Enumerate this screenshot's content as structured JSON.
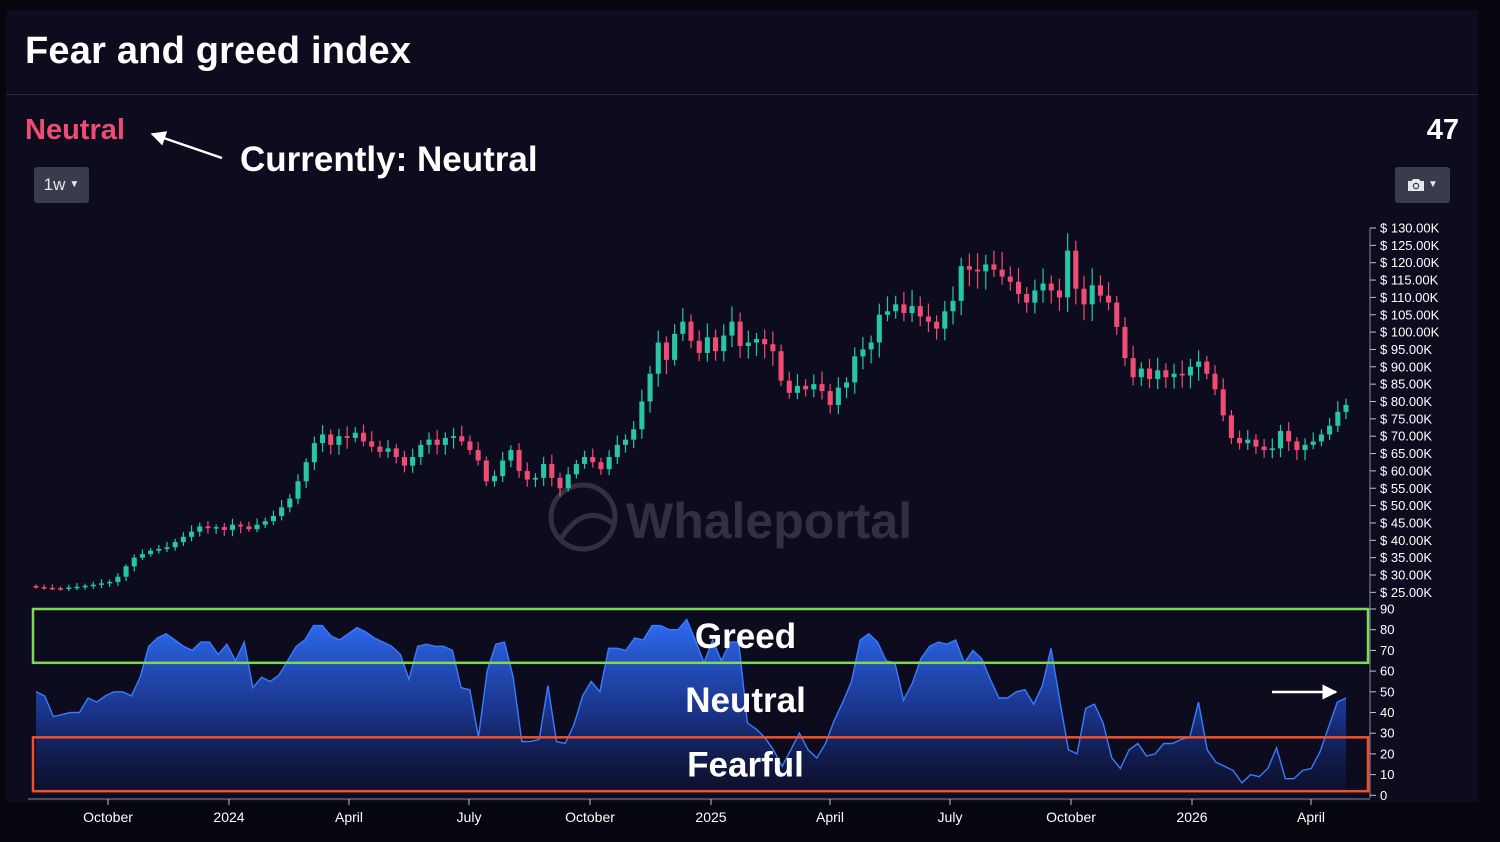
{
  "title": "Fear and greed index",
  "current": {
    "label": "Neutral",
    "value": "47",
    "label_color": "#ef4c73"
  },
  "annotation": "Currently: Neutral",
  "toolbar": {
    "timeframe_label": "1w",
    "timeframe_caret_icon": "chevron-down-icon",
    "screenshot_icon": "camera-icon"
  },
  "watermark": "Whaleportal",
  "colors": {
    "up": "#26c6a6",
    "down": "#ef4c73",
    "area": "#2f6df6",
    "greed_zone": "#7ed957",
    "fear_zone": "#f0502a"
  },
  "chart_data": [
    {
      "type": "candlestick",
      "title": "",
      "xlabel": "",
      "ylabel": "",
      "x_tick_labels": [
        "October",
        "2024",
        "April",
        "July",
        "October",
        "2025",
        "April",
        "July",
        "October",
        "2026",
        "April"
      ],
      "y_tick_labels": [
        "$ 130.00K",
        "$ 125.00K",
        "$ 120.00K",
        "$ 115.00K",
        "$ 110.00K",
        "$ 105.00K",
        "$ 100.00K",
        "$ 95.00K",
        "$ 90.00K",
        "$ 85.00K",
        "$ 80.00K",
        "$ 75.00K",
        "$ 70.00K",
        "$ 65.00K",
        "$ 60.00K",
        "$ 55.00K",
        "$ 50.00K",
        "$ 45.00K",
        "$ 40.00K",
        "$ 35.00K",
        "$ 30.00K",
        "$ 25.00K"
      ],
      "ylim": [
        25000,
        130000
      ],
      "closes_k": [
        26.5,
        26.3,
        26.2,
        26.1,
        26.4,
        26.6,
        26.9,
        27.2,
        27.6,
        28.0,
        29.5,
        32.5,
        35.0,
        36.0,
        37.0,
        37.5,
        38.0,
        39.5,
        41.0,
        42.5,
        44.0,
        43.5,
        43.8,
        43.0,
        44.5,
        44.0,
        43.2,
        44.5,
        45.5,
        47.0,
        49.5,
        52.0,
        57.0,
        62.5,
        68.0,
        70.5,
        67.5,
        70.0,
        69.5,
        71.0,
        68.5,
        67.0,
        65.5,
        66.5,
        64.0,
        61.5,
        64.0,
        67.5,
        69.0,
        67.5,
        69.5,
        70.0,
        68.5,
        66.0,
        63.0,
        57.0,
        58.5,
        63.0,
        66.0,
        60.0,
        57.5,
        58.0,
        62.0,
        58.0,
        55.0,
        59.0,
        62.0,
        64.0,
        62.5,
        60.5,
        64.0,
        67.5,
        69.0,
        72.0,
        80.0,
        88.0,
        97.0,
        92.0,
        99.5,
        103.0,
        97.5,
        94.0,
        98.5,
        94.5,
        99.0,
        103.0,
        96.0,
        97.0,
        98.0,
        96.5,
        94.5,
        86.0,
        82.5,
        84.5,
        83.5,
        85.0,
        83.0,
        79.0,
        84.0,
        85.5,
        93.0,
        95.0,
        97.0,
        105.0,
        106.0,
        108.0,
        105.5,
        107.5,
        104.5,
        103.0,
        101.0,
        106.0,
        109.0,
        119.0,
        118.0,
        117.5,
        119.5,
        118.0,
        116.0,
        114.5,
        111.0,
        108.5,
        112.0,
        114.0,
        112.0,
        110.0,
        123.5,
        112.5,
        108.0,
        113.5,
        110.5,
        108.5,
        101.5,
        92.5,
        87.0,
        89.5,
        86.5,
        89.0,
        87.0,
        88.0,
        87.5,
        90.0,
        91.5,
        88.0,
        83.5,
        76.0,
        69.5,
        68.0,
        69.0,
        67.0,
        66.0,
        66.5,
        71.5,
        68.5,
        66.0,
        67.5,
        68.5,
        70.5,
        73.0,
        77.0,
        79.0
      ]
    },
    {
      "type": "area",
      "title": "",
      "xlabel": "",
      "ylabel": "",
      "y_tick_labels": [
        "90",
        "80",
        "70",
        "60",
        "50",
        "40",
        "30",
        "20",
        "10",
        "0"
      ],
      "ylim": [
        0,
        90
      ],
      "values": [
        50,
        48,
        38,
        39,
        40,
        40,
        47,
        45,
        48,
        50,
        50,
        48,
        57,
        72,
        76,
        78,
        75,
        72,
        70,
        74,
        74,
        68,
        73,
        65,
        74,
        52,
        57,
        55,
        58,
        65,
        72,
        75,
        82,
        82,
        77,
        75,
        78,
        81,
        79,
        76,
        74,
        72,
        68,
        56,
        72,
        73,
        72,
        72,
        70,
        52,
        51,
        28,
        60,
        73,
        74,
        57,
        26,
        26,
        27,
        53,
        26,
        25,
        34,
        48,
        55,
        50,
        71,
        71,
        70,
        76,
        75,
        82,
        82,
        80,
        80,
        85,
        75,
        64,
        75,
        65,
        74,
        74,
        35,
        32,
        28,
        22,
        14,
        22,
        30,
        22,
        18,
        25,
        36,
        45,
        55,
        75,
        78,
        74,
        65,
        64,
        46,
        54,
        66,
        72,
        74,
        73,
        75,
        64,
        70,
        66,
        56,
        47,
        47,
        50,
        51,
        44,
        53,
        71,
        46,
        22,
        20,
        42,
        44,
        35,
        18,
        13,
        22,
        25,
        19,
        20,
        25,
        25,
        27,
        28,
        45,
        22,
        16,
        14,
        12,
        6,
        10,
        9,
        13,
        23,
        8,
        8,
        12,
        13,
        21,
        33,
        45,
        47
      ],
      "zones": [
        {
          "name": "Greed",
          "from": 64,
          "to": 90
        },
        {
          "name": "Neutral",
          "from": 28,
          "to": 64
        },
        {
          "name": "Fearful",
          "from": 2,
          "to": 28
        }
      ]
    }
  ]
}
